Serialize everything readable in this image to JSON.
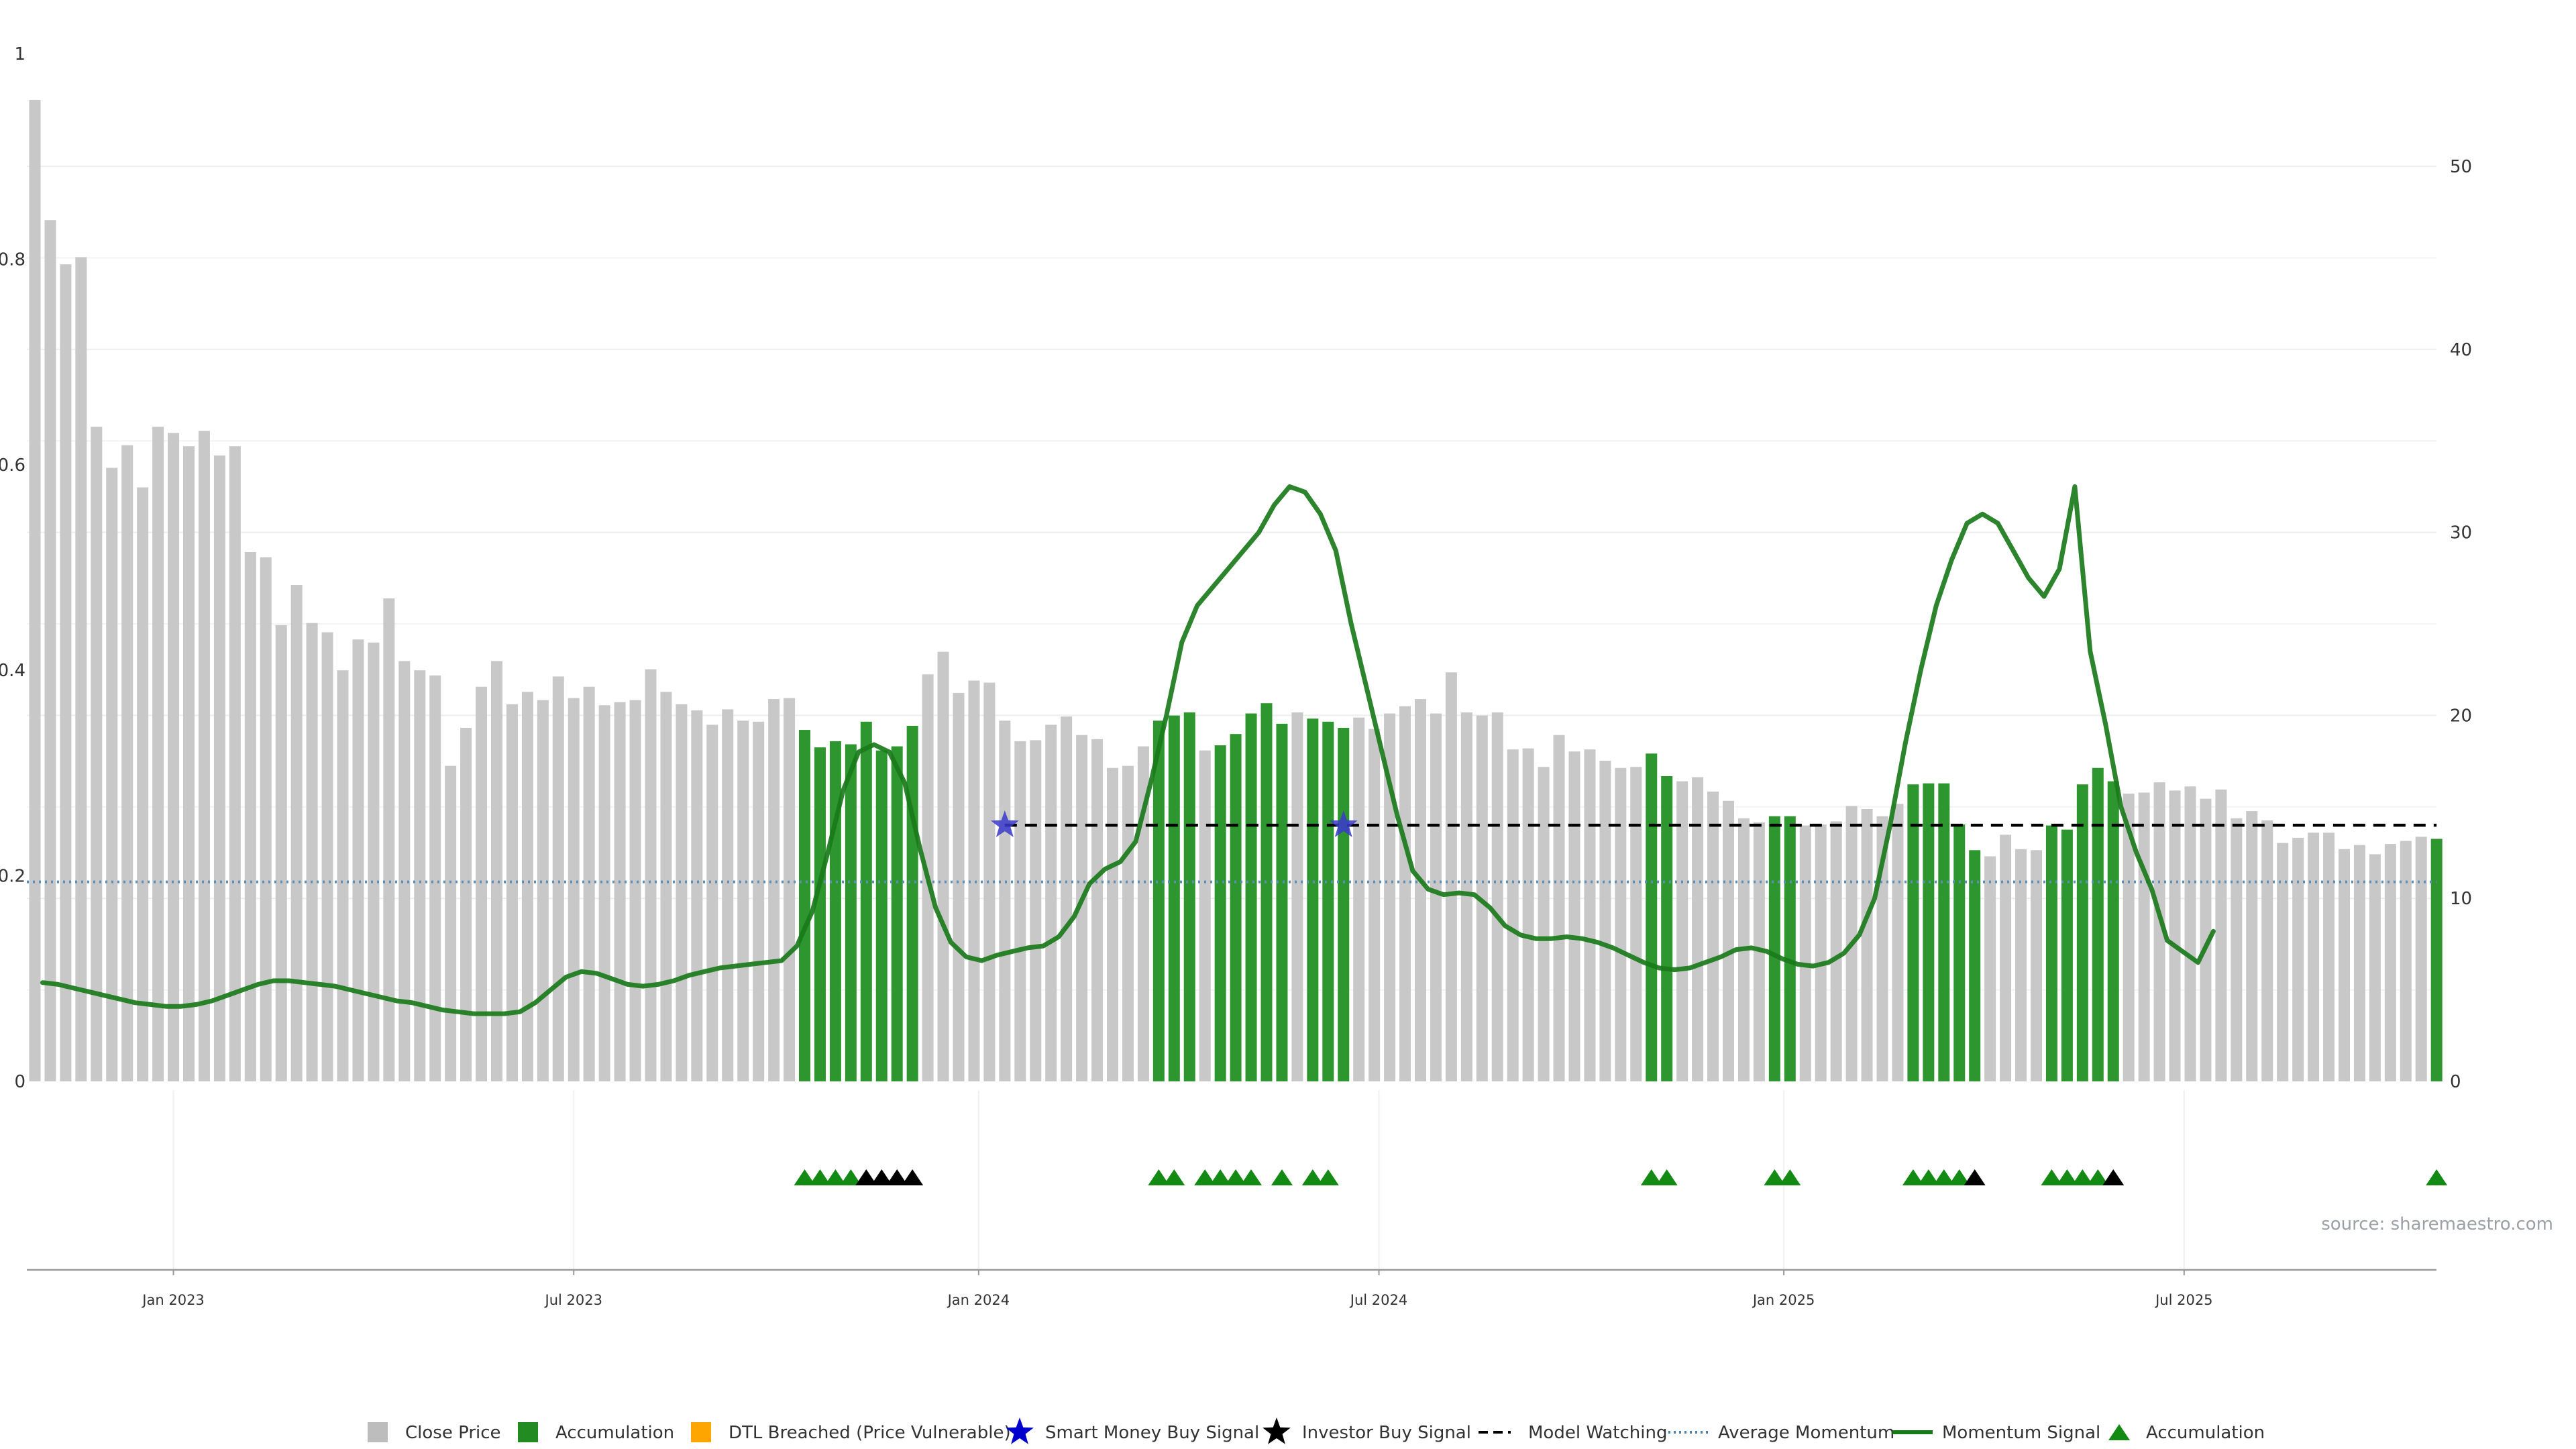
{
  "chart_data": {
    "type": "bar",
    "source_note": "source: sharemaestro.com",
    "left_axis": {
      "range": [
        0,
        1
      ],
      "ticks": [
        "0",
        "0.2",
        "0.4",
        "0.6",
        "0.8",
        "1"
      ]
    },
    "right_axis": {
      "range": [
        0,
        55
      ],
      "ticks": [
        "0",
        "10",
        "20",
        "30",
        "40",
        "50"
      ]
    },
    "x_ticks": [
      "Jan 2023",
      "Jul 2023",
      "Jan 2024",
      "Jul 2024",
      "Jan 2025",
      "Jul 2025"
    ],
    "x_tick_weeks": [
      9,
      35,
      61.3,
      87.3,
      113.6,
      139.6
    ],
    "grid": true,
    "legend_position": "bottom",
    "legend": [
      {
        "label": "Close Price",
        "kind": "square",
        "color": "#bdbdbd"
      },
      {
        "label": "Accumulation",
        "kind": "square",
        "color": "#228b22"
      },
      {
        "label": "DTL Breached (Price Vulnerable)",
        "kind": "square",
        "color": "#ffa500"
      },
      {
        "label": "Smart Money Buy Signal",
        "kind": "star",
        "color": "#0000cd"
      },
      {
        "label": "Investor Buy Signal",
        "kind": "star",
        "color": "#000000"
      },
      {
        "label": "Model Watching",
        "kind": "dash",
        "color": "#000000"
      },
      {
        "label": "Average Momentum",
        "kind": "dot",
        "color": "#4a7fb0"
      },
      {
        "label": "Momentum Signal",
        "kind": "line",
        "color": "#1a7a1a"
      },
      {
        "label": "Accumulation",
        "kind": "triangle",
        "color": "#138a13"
      }
    ],
    "colors": {
      "close": "#c8c8c8",
      "accum": "#2e962e",
      "momentum": "#1a7a1a",
      "avg_momentum": "#5b8fb9",
      "watching": "#000000",
      "smart_star": "#3a3acd",
      "tri_green": "#138a13",
      "tri_black": "#000000"
    },
    "close_price": [
      0.955,
      0.838,
      0.795,
      0.802,
      0.637,
      0.597,
      0.619,
      0.578,
      0.637,
      0.631,
      0.618,
      0.633,
      0.609,
      0.618,
      0.515,
      0.51,
      0.444,
      0.483,
      0.446,
      0.437,
      0.4,
      0.43,
      0.427,
      0.47,
      0.409,
      0.4,
      0.395,
      0.307,
      0.344,
      0.384,
      0.409,
      0.367,
      0.379,
      0.371,
      0.394,
      0.373,
      0.384,
      0.366,
      0.369,
      0.371,
      0.401,
      0.379,
      0.367,
      0.361,
      0.347,
      0.362,
      0.351,
      0.35,
      0.372,
      0.373,
      0.342,
      0.325,
      0.331,
      0.328,
      0.35,
      0.322,
      0.326,
      0.346,
      0.396,
      0.418,
      0.378,
      0.39,
      0.388,
      0.351,
      0.331,
      0.332,
      0.347,
      0.355,
      0.337,
      0.333,
      0.305,
      0.307,
      0.326,
      0.351,
      0.356,
      0.359,
      0.322,
      0.327,
      0.338,
      0.358,
      0.368,
      0.348,
      0.359,
      0.353,
      0.35,
      0.344,
      0.354,
      0.343,
      0.358,
      0.365,
      0.372,
      0.358,
      0.398,
      0.359,
      0.356,
      0.359,
      0.323,
      0.324,
      0.306,
      0.337,
      0.321,
      0.323,
      0.312,
      0.305,
      0.306,
      0.319,
      0.297,
      0.292,
      0.296,
      0.282,
      0.273,
      0.256,
      0.252,
      0.258,
      0.258,
      0.249,
      0.25,
      0.253,
      0.268,
      0.265,
      0.258,
      0.27,
      0.289,
      0.29,
      0.29,
      0.25,
      0.225,
      0.219,
      0.24,
      0.226,
      0.225,
      0.249,
      0.245,
      0.289,
      0.305,
      0.292,
      0.28,
      0.281,
      0.291,
      0.283,
      0.287,
      0.275,
      0.284,
      0.256,
      0.263,
      0.254,
      0.232,
      0.237,
      0.242,
      0.242,
      0.226,
      0.23,
      0.221,
      0.231,
      0.234,
      0.238,
      0.236
    ],
    "accumulation_weeks": [
      50,
      51,
      52,
      53,
      54,
      55,
      56,
      57,
      73,
      74,
      75,
      77,
      78,
      79,
      80,
      81,
      83,
      84,
      85,
      105,
      106,
      113,
      114,
      122,
      123,
      124,
      125,
      126,
      131,
      132,
      133,
      134,
      135,
      156
    ],
    "triangles_green": [
      50,
      51,
      52,
      53,
      73,
      74,
      76,
      77,
      78,
      79,
      81,
      83,
      84,
      105,
      106,
      113,
      114,
      122,
      123,
      124,
      125,
      131,
      132,
      133,
      134,
      156
    ],
    "triangles_black": [
      54,
      55,
      56,
      57,
      126,
      135
    ],
    "smart_money_signals": [
      {
        "week": 63,
        "value": 14
      },
      {
        "week": 85,
        "value": 14
      }
    ],
    "investor_signals": [],
    "model_watching": {
      "from_week": 63,
      "to_week": 156,
      "value": 14
    },
    "average_momentum": 10.9,
    "momentum_signal": [
      5.4,
      5.3,
      5.1,
      4.9,
      4.7,
      4.5,
      4.3,
      4.2,
      4.1,
      4.1,
      4.2,
      4.4,
      4.7,
      5.0,
      5.3,
      5.5,
      5.5,
      5.4,
      5.3,
      5.2,
      5.0,
      4.8,
      4.6,
      4.4,
      4.3,
      4.1,
      3.9,
      3.8,
      3.7,
      3.7,
      3.7,
      3.8,
      4.3,
      5.0,
      5.7,
      6.0,
      5.9,
      5.6,
      5.3,
      5.2,
      5.3,
      5.5,
      5.8,
      6.0,
      6.2,
      6.3,
      6.4,
      6.5,
      6.6,
      7.4,
      9.3,
      12.5,
      15.9,
      18.0,
      18.4,
      18.0,
      16.3,
      12.7,
      9.5,
      7.6,
      6.8,
      6.6,
      6.9,
      7.1,
      7.3,
      7.4,
      7.9,
      9.0,
      10.8,
      11.6,
      12.0,
      13.1,
      16.4,
      20.0,
      24.0,
      26.0,
      27.0,
      28.0,
      29.0,
      30.0,
      31.5,
      32.5,
      32.2,
      31.0,
      29.0,
      25.0,
      21.5,
      18.0,
      14.5,
      11.5,
      10.5,
      10.2,
      10.3,
      10.2,
      9.5,
      8.5,
      8.0,
      7.8,
      7.8,
      7.9,
      7.8,
      7.6,
      7.3,
      6.9,
      6.5,
      6.2,
      6.1,
      6.2,
      6.5,
      6.8,
      7.2,
      7.3,
      7.1,
      6.7,
      6.4,
      6.3,
      6.5,
      7.0,
      8.0,
      10.0,
      14.0,
      18.5,
      22.5,
      26.0,
      28.5,
      30.5,
      31.0,
      30.5,
      29.0,
      27.5,
      26.5,
      28.0,
      32.5,
      23.5,
      19.5,
      15.0,
      12.5,
      10.5,
      7.7,
      7.1,
      6.5,
      8.2
    ],
    "momentum_signal_start_week": 0.5
  }
}
